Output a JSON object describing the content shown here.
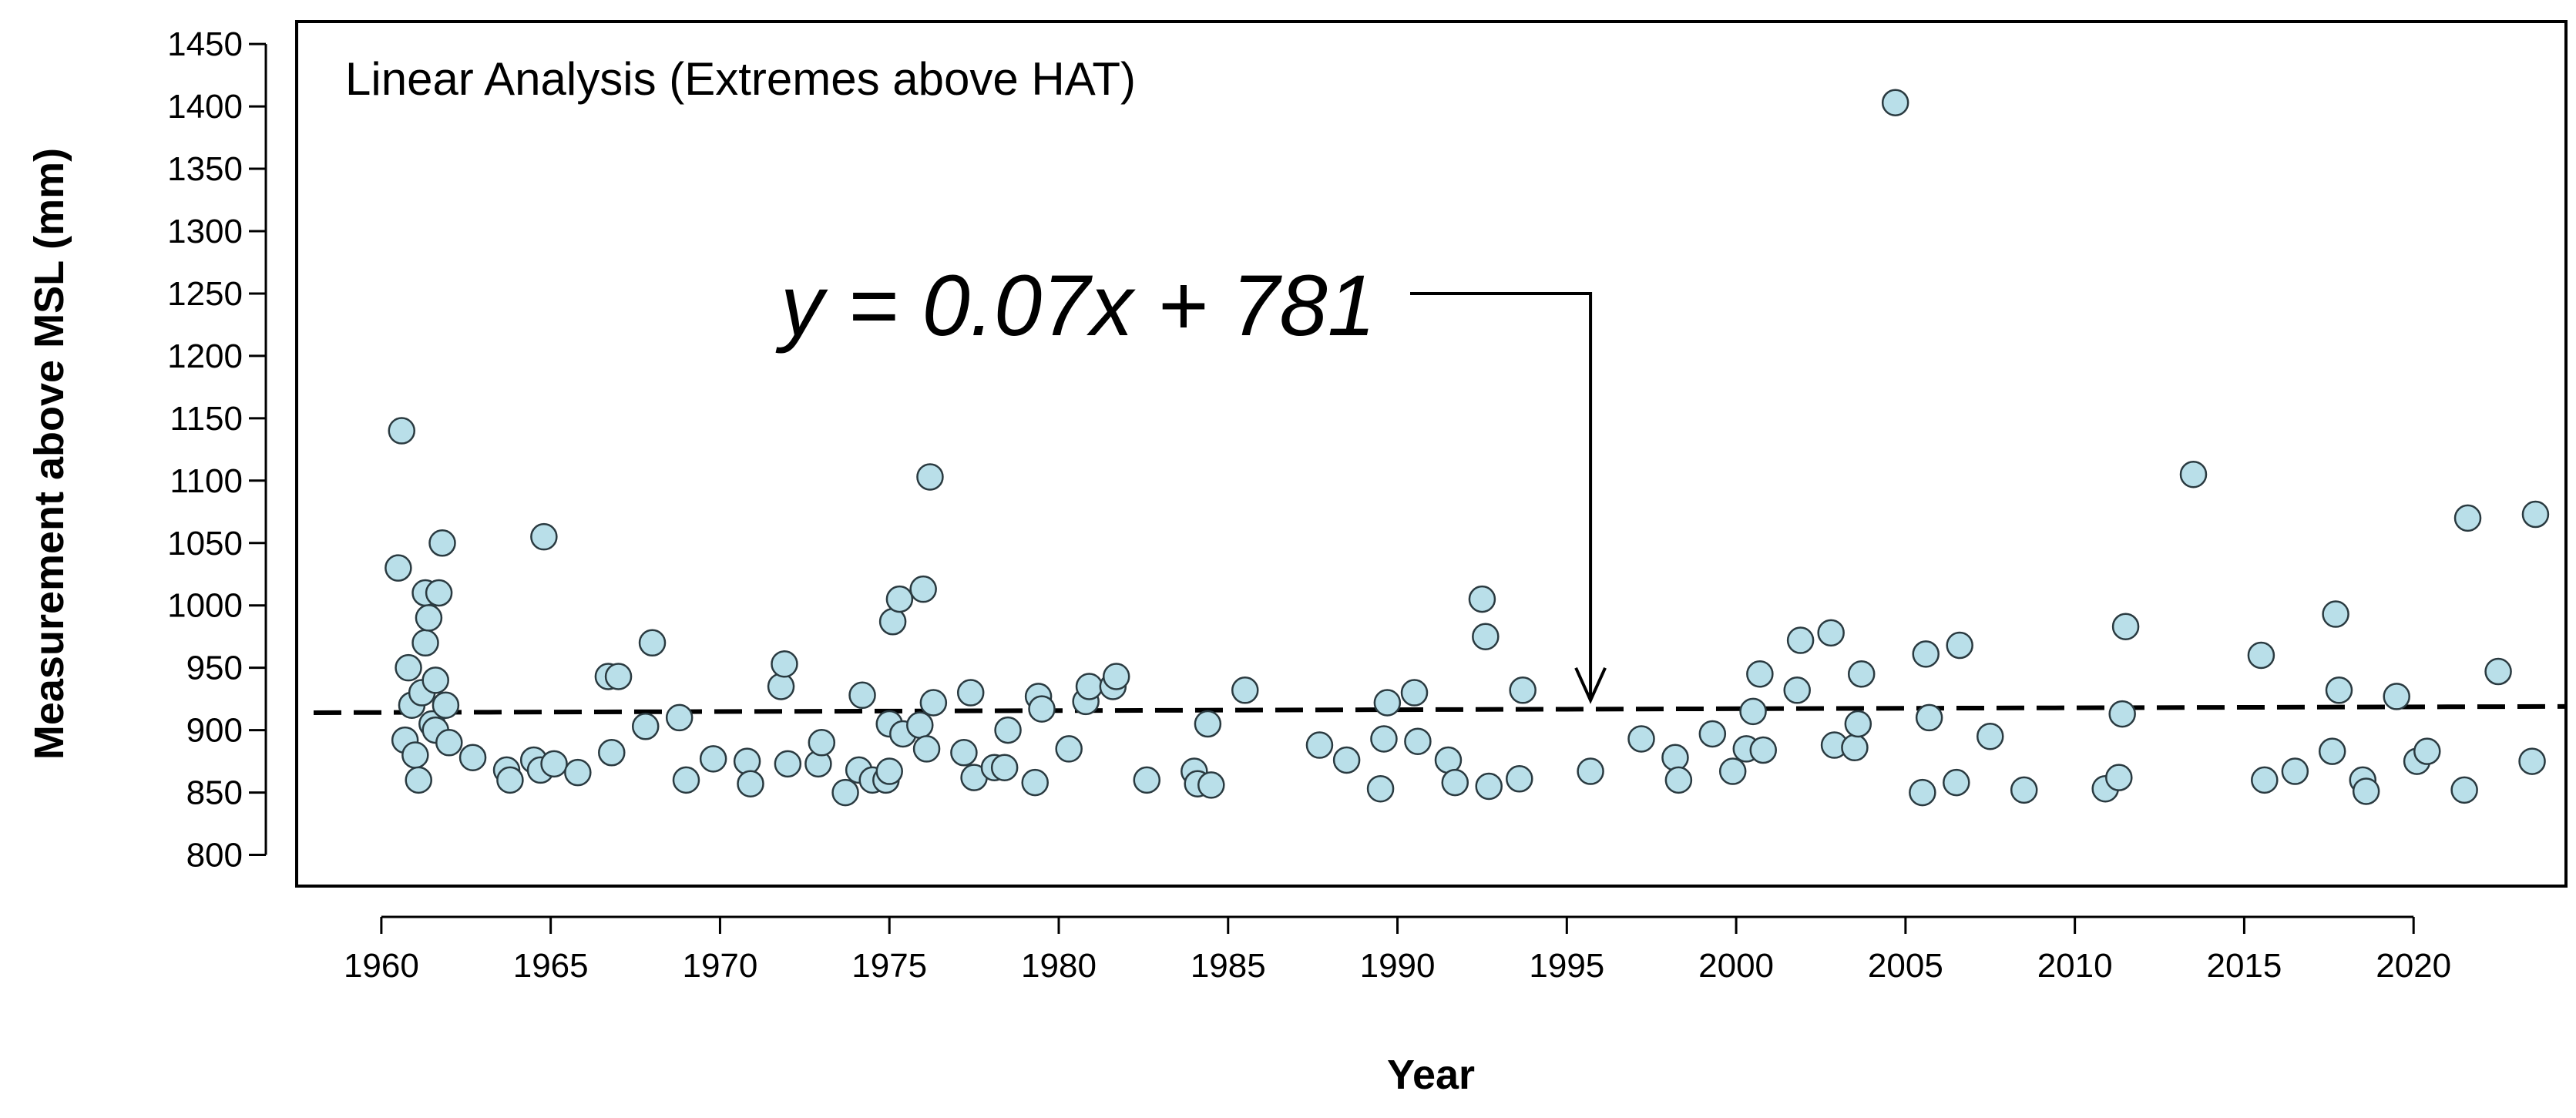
{
  "chart_data": {
    "type": "scatter",
    "title": "Linear Analysis (Extremes above HAT)",
    "xlabel": "Year",
    "ylabel": "Measurement above MSL (mm)",
    "xlim": [
      1957.5,
      2024.5
    ],
    "ylim": [
      775,
      1468
    ],
    "xticks": [
      1960,
      1965,
      1970,
      1975,
      1980,
      1985,
      1990,
      1995,
      2000,
      2005,
      2010,
      2015,
      2020
    ],
    "yticks": [
      800,
      850,
      900,
      950,
      1000,
      1050,
      1100,
      1150,
      1200,
      1250,
      1300,
      1350,
      1400,
      1450
    ],
    "grid": false,
    "trend_line": {
      "slope": 0.07,
      "intercept_display": 781,
      "start": [
        1958.0,
        914
      ],
      "end": [
        2024.5,
        919
      ],
      "style": "dashed"
    },
    "annotation": {
      "text": "y = 0.07x + 781",
      "arrow_to": [
        1995.7,
        919
      ]
    },
    "series": [
      {
        "name": "Extremes above HAT",
        "points": [
          [
            1960.5,
            1030
          ],
          [
            1960.6,
            1140
          ],
          [
            1960.7,
            892
          ],
          [
            1960.8,
            950
          ],
          [
            1960.9,
            920
          ],
          [
            1961.0,
            880
          ],
          [
            1961.1,
            860
          ],
          [
            1961.2,
            930
          ],
          [
            1961.3,
            970
          ],
          [
            1961.3,
            1010
          ],
          [
            1961.4,
            990
          ],
          [
            1961.5,
            905
          ],
          [
            1961.6,
            940
          ],
          [
            1961.6,
            900
          ],
          [
            1961.7,
            1010
          ],
          [
            1961.8,
            1050
          ],
          [
            1961.9,
            920
          ],
          [
            1962.0,
            890
          ],
          [
            1962.7,
            878
          ],
          [
            1963.7,
            868
          ],
          [
            1963.8,
            860
          ],
          [
            1964.5,
            876
          ],
          [
            1964.7,
            868
          ],
          [
            1964.8,
            1055
          ],
          [
            1965.1,
            873
          ],
          [
            1965.8,
            866
          ],
          [
            1966.7,
            943
          ],
          [
            1966.8,
            882
          ],
          [
            1967.0,
            943
          ],
          [
            1967.8,
            903
          ],
          [
            1968.0,
            970
          ],
          [
            1968.8,
            910
          ],
          [
            1969.0,
            860
          ],
          [
            1969.8,
            877
          ],
          [
            1970.8,
            875
          ],
          [
            1970.9,
            857
          ],
          [
            1971.8,
            935
          ],
          [
            1971.9,
            953
          ],
          [
            1972.0,
            873
          ],
          [
            1972.9,
            873
          ],
          [
            1973.0,
            890
          ],
          [
            1973.7,
            850
          ],
          [
            1974.1,
            868
          ],
          [
            1974.2,
            928
          ],
          [
            1974.5,
            860
          ],
          [
            1974.9,
            860
          ],
          [
            1975.0,
            867
          ],
          [
            1975.0,
            905
          ],
          [
            1975.1,
            987
          ],
          [
            1975.3,
            1005
          ],
          [
            1975.4,
            897
          ],
          [
            1975.9,
            904
          ],
          [
            1976.0,
            1013
          ],
          [
            1976.1,
            885
          ],
          [
            1976.2,
            1103
          ],
          [
            1976.3,
            922
          ],
          [
            1977.2,
            882
          ],
          [
            1977.4,
            930
          ],
          [
            1977.5,
            862
          ],
          [
            1978.1,
            870
          ],
          [
            1978.4,
            870
          ],
          [
            1978.5,
            900
          ],
          [
            1979.3,
            858
          ],
          [
            1979.4,
            927
          ],
          [
            1979.5,
            917
          ],
          [
            1980.3,
            885
          ],
          [
            1980.8,
            923
          ],
          [
            1980.9,
            935
          ],
          [
            1981.6,
            935
          ],
          [
            1981.7,
            943
          ],
          [
            1982.6,
            860
          ],
          [
            1984.0,
            867
          ],
          [
            1984.1,
            857
          ],
          [
            1984.4,
            905
          ],
          [
            1984.5,
            856
          ],
          [
            1985.5,
            932
          ],
          [
            1987.7,
            888
          ],
          [
            1988.5,
            876
          ],
          [
            1989.5,
            853
          ],
          [
            1989.6,
            893
          ],
          [
            1989.7,
            922
          ],
          [
            1990.5,
            930
          ],
          [
            1990.6,
            891
          ],
          [
            1991.5,
            876
          ],
          [
            1991.7,
            858
          ],
          [
            1992.5,
            1005
          ],
          [
            1992.6,
            975
          ],
          [
            1992.7,
            855
          ],
          [
            1993.6,
            861
          ],
          [
            1993.7,
            932
          ],
          [
            1995.7,
            867
          ],
          [
            1997.2,
            893
          ],
          [
            1998.2,
            878
          ],
          [
            1998.3,
            860
          ],
          [
            1999.3,
            897
          ],
          [
            1999.9,
            867
          ],
          [
            2000.3,
            885
          ],
          [
            2000.5,
            915
          ],
          [
            2000.7,
            945
          ],
          [
            2000.8,
            884
          ],
          [
            2001.8,
            932
          ],
          [
            2001.9,
            972
          ],
          [
            2002.8,
            978
          ],
          [
            2002.9,
            888
          ],
          [
            2003.5,
            886
          ],
          [
            2003.6,
            905
          ],
          [
            2003.7,
            945
          ],
          [
            2004.7,
            1403
          ],
          [
            2005.5,
            850
          ],
          [
            2005.6,
            961
          ],
          [
            2005.7,
            910
          ],
          [
            2006.5,
            858
          ],
          [
            2006.6,
            968
          ],
          [
            2007.5,
            895
          ],
          [
            2008.5,
            852
          ],
          [
            2010.9,
            853
          ],
          [
            2011.3,
            862
          ],
          [
            2011.4,
            913
          ],
          [
            2011.5,
            983
          ],
          [
            2013.5,
            1105
          ],
          [
            2015.5,
            960
          ],
          [
            2015.6,
            860
          ],
          [
            2016.5,
            867
          ],
          [
            2017.6,
            883
          ],
          [
            2017.7,
            993
          ],
          [
            2017.8,
            932
          ],
          [
            2018.5,
            860
          ],
          [
            2018.6,
            851
          ],
          [
            2019.5,
            927
          ],
          [
            2020.1,
            875
          ],
          [
            2020.4,
            883
          ],
          [
            2021.5,
            852
          ],
          [
            2021.6,
            1070
          ],
          [
            2022.5,
            947
          ],
          [
            2023.5,
            875
          ],
          [
            2023.6,
            1073
          ]
        ]
      }
    ]
  }
}
